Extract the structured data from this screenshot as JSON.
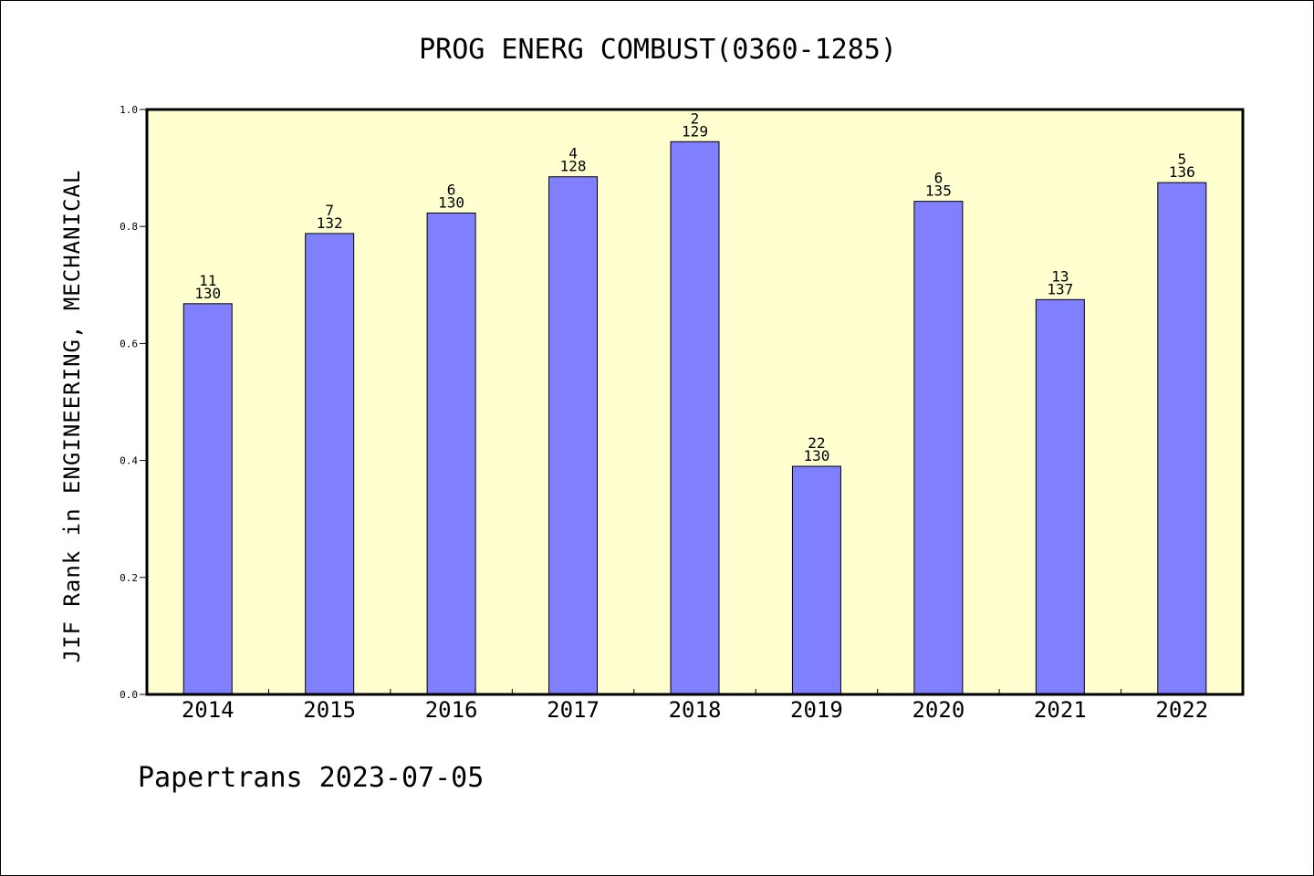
{
  "chart_data": {
    "type": "bar",
    "title": "PROG ENERG COMBUST(0360-1285)",
    "ylabel": "JIF Rank in ENGINEERING, MECHANICAL",
    "xlabel": "",
    "categories": [
      "2014",
      "2015",
      "2016",
      "2017",
      "2018",
      "2019",
      "2020",
      "2021",
      "2022"
    ],
    "values": [
      0.668,
      0.788,
      0.823,
      0.885,
      0.945,
      0.39,
      0.843,
      0.675,
      0.875
    ],
    "rank_labels": [
      "11",
      "7",
      "6",
      "4",
      "2",
      "22",
      "6",
      "13",
      "5"
    ],
    "total_labels": [
      "130",
      "132",
      "130",
      "128",
      "129",
      "130",
      "135",
      "137",
      "136"
    ],
    "ylim": [
      0,
      1.0
    ],
    "yticks": [
      "0.0",
      "0.2",
      "0.4",
      "0.6",
      "0.8",
      "1.0"
    ],
    "grid": false,
    "colors": {
      "bar": "#8080ff",
      "plot_background": "#ffffd0",
      "axis": "#000000"
    }
  },
  "footer": "Papertrans 2023-07-05"
}
